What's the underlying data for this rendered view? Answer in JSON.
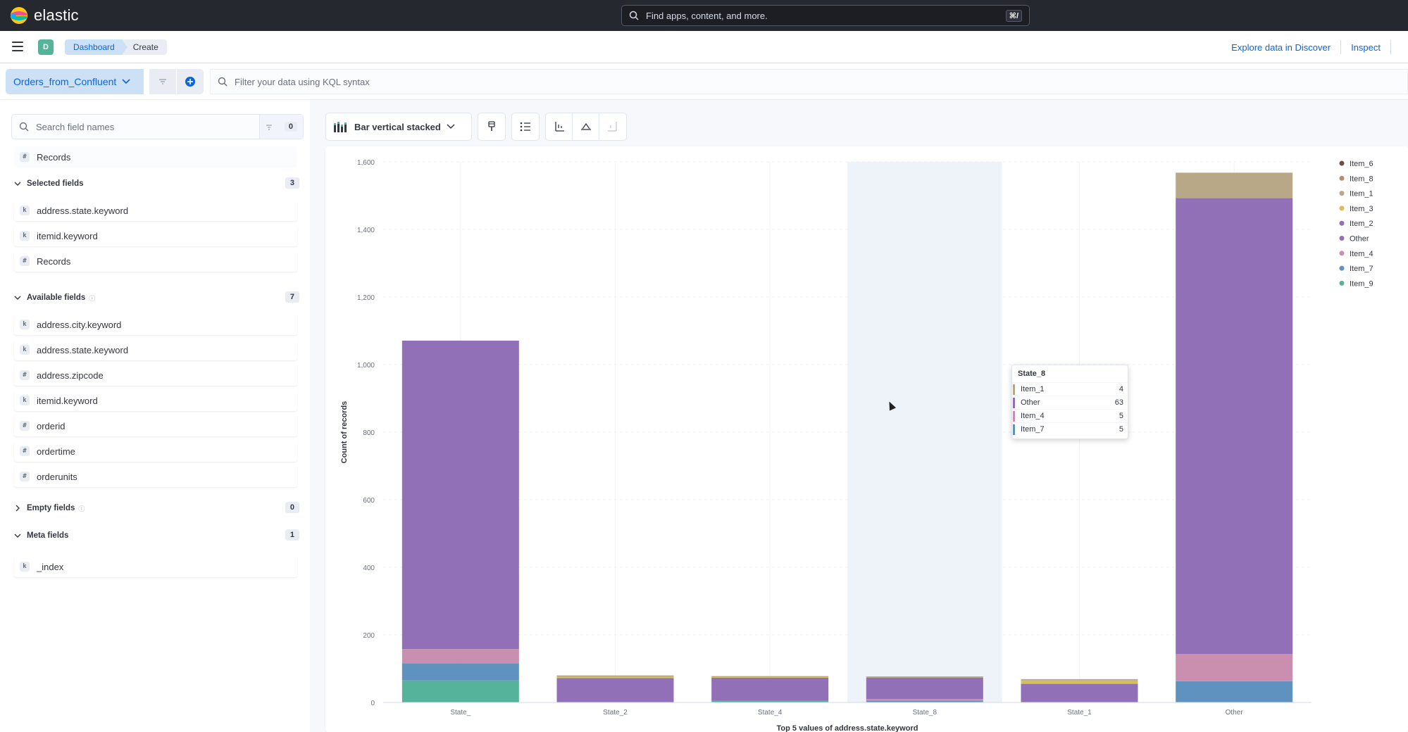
{
  "header": {
    "brand": "elastic",
    "search_placeholder": "Find apps, content, and more.",
    "shortcut": "⌘/"
  },
  "navbar": {
    "space_initial": "D",
    "breadcrumbs": [
      "Dashboard",
      "Create"
    ],
    "links": [
      "Explore data in Discover",
      "Inspect"
    ]
  },
  "query": {
    "data_view": "Orders_from_Confluent",
    "kql_placeholder": "Filter your data using KQL syntax"
  },
  "fields_panel": {
    "search_placeholder": "Search field names",
    "filter_count": "0",
    "records_label": "Records",
    "selected": {
      "title": "Selected fields",
      "count": "3",
      "items": [
        {
          "type": "k",
          "name": "address.state.keyword"
        },
        {
          "type": "k",
          "name": "itemid.keyword"
        },
        {
          "type": "#",
          "name": "Records"
        }
      ]
    },
    "available": {
      "title": "Available fields",
      "count": "7",
      "items": [
        {
          "type": "k",
          "name": "address.city.keyword"
        },
        {
          "type": "k",
          "name": "address.state.keyword"
        },
        {
          "type": "#",
          "name": "address.zipcode"
        },
        {
          "type": "k",
          "name": "itemid.keyword"
        },
        {
          "type": "#",
          "name": "orderid"
        },
        {
          "type": "#",
          "name": "ordertime"
        },
        {
          "type": "#",
          "name": "orderunits"
        }
      ]
    },
    "empty": {
      "title": "Empty fields",
      "count": "0"
    },
    "meta": {
      "title": "Meta fields",
      "count": "1",
      "items": [
        {
          "type": "k",
          "name": "_index"
        }
      ]
    }
  },
  "toolbar": {
    "chart_type": "Bar vertical stacked"
  },
  "chart_data": {
    "type": "bar",
    "stacked": true,
    "categories": [
      "State_",
      "State_2",
      "State_4",
      "State_8",
      "State_1",
      "Other"
    ],
    "series": [
      {
        "name": "Item_6",
        "color": "#6e4d4a",
        "values": [
          0,
          0,
          0,
          0,
          0,
          0
        ]
      },
      {
        "name": "Item_8",
        "color": "#b98b6e",
        "values": [
          0,
          0,
          0,
          0,
          0,
          0
        ]
      },
      {
        "name": "Item_1",
        "color": "#b9a888",
        "values": [
          0,
          4,
          3,
          4,
          4,
          75
        ]
      },
      {
        "name": "Item_3",
        "color": "#d6bf57",
        "values": [
          0,
          4,
          2,
          0,
          10,
          0
        ]
      },
      {
        "name": "Item_2",
        "color": "#9170b8",
        "values": [
          0,
          0,
          0,
          0,
          0,
          0
        ]
      },
      {
        "name": "Other",
        "color": "#9170b8",
        "values": [
          913,
          72,
          68,
          63,
          55,
          1350
        ]
      },
      {
        "name": "Item_4",
        "color": "#ca8eae",
        "values": [
          42,
          0,
          0,
          5,
          0,
          80
        ]
      },
      {
        "name": "Item_7",
        "color": "#6092c0",
        "values": [
          51,
          0,
          0,
          5,
          0,
          63
        ]
      },
      {
        "name": "Item_9",
        "color": "#54b399",
        "values": [
          65,
          0,
          5,
          0,
          0,
          0
        ]
      }
    ],
    "legend_names": [
      "Item_6",
      "Item_8",
      "Item_1",
      "Item_3",
      "Item_2",
      "Other",
      "Item_4",
      "Item_7",
      "Item_9"
    ],
    "legend_position": "right",
    "ylabel": "Count of records",
    "xlabel": "Top 5 values of address.state.keyword",
    "ylim": [
      0,
      1600
    ],
    "yticks": [
      0,
      200,
      400,
      600,
      800,
      "1,000",
      "1,200",
      "1,400",
      "1,600"
    ],
    "highlighted_category": "State_8"
  },
  "tooltip": {
    "title": "State_8",
    "rows": [
      {
        "label": "Item_1",
        "value": "4",
        "color": "#b9a888"
      },
      {
        "label": "Other",
        "value": "63",
        "color": "#9170b8"
      },
      {
        "label": "Item_4",
        "value": "5",
        "color": "#ca8eae"
      },
      {
        "label": "Item_7",
        "value": "5",
        "color": "#6092c0"
      }
    ]
  }
}
